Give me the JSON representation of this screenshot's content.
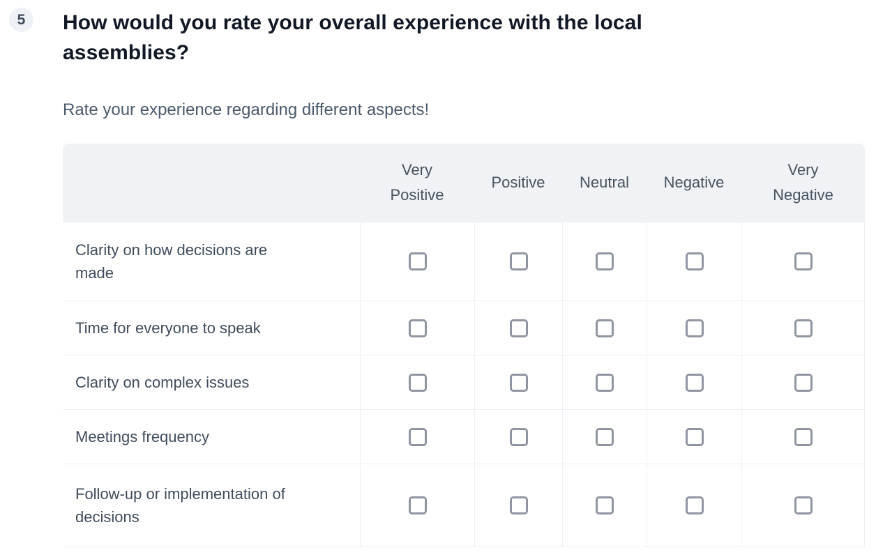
{
  "question": {
    "number": "5",
    "title": "How would you rate your overall experience with the local assemblies?",
    "subtitle": "Rate your experience regarding different aspects!"
  },
  "matrix": {
    "columns": [
      "Very Positive",
      "Positive",
      "Neutral",
      "Negative",
      "Very Negative"
    ],
    "rows": [
      {
        "label": "Clarity on how decisions are made",
        "cells": [
          "unchecked",
          "unchecked",
          "unchecked",
          "unchecked",
          "unchecked"
        ]
      },
      {
        "label": "Time for everyone to speak",
        "cells": [
          "unchecked",
          "unchecked",
          "unchecked",
          "unchecked",
          "unchecked"
        ]
      },
      {
        "label": "Clarity on complex issues",
        "cells": [
          "unchecked",
          "unchecked",
          "unchecked",
          "unchecked",
          "unchecked"
        ]
      },
      {
        "label": "Meetings frequency",
        "cells": [
          "unchecked",
          "unchecked",
          "unchecked",
          "unchecked",
          "unchecked"
        ]
      },
      {
        "label": "Follow-up or implementation of decisions",
        "cells": [
          "unchecked",
          "unchecked",
          "unchecked",
          "unchecked",
          "unchecked"
        ]
      }
    ]
  },
  "colors": {
    "header_bg": "#f0f2f6",
    "grid_line": "#edeff4",
    "checkbox_border": "#8f95a1",
    "badge_bg": "#eef1f6",
    "badge_text": "#3f4b5c",
    "title_text": "#111826",
    "subtitle_text": "#4a5a6c",
    "label_text": "#3e4c5c",
    "header_text": "#46525f"
  }
}
